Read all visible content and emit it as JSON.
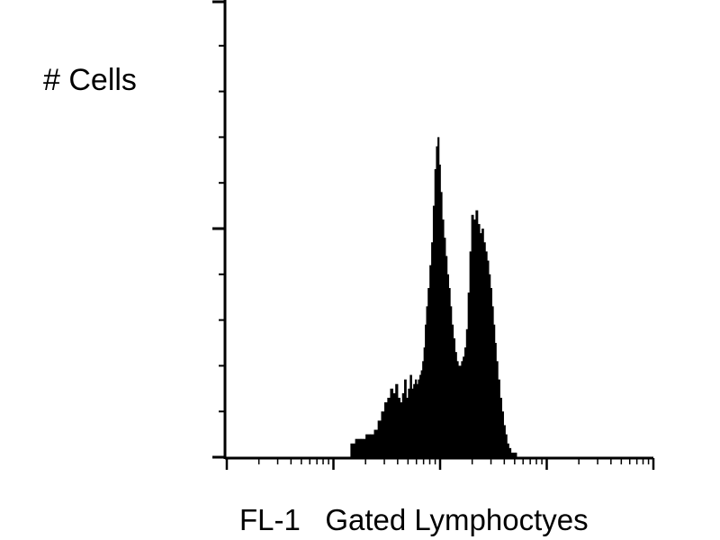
{
  "chart_data": {
    "type": "area",
    "title": "",
    "ylabel": "# Cells",
    "xlabel": "FL-1   Gated Lymphoctyes",
    "x_scale": "log",
    "xlim": [
      1,
      10000
    ],
    "ylim": [
      0,
      100
    ],
    "grid": false,
    "legend": "none",
    "fill_color": "#000000",
    "histogram": {
      "x": [
        15.0,
        17.0,
        19.0,
        21.0,
        23.0,
        25.0,
        27.0,
        29.0,
        31.0,
        33.0,
        35.0,
        37.0,
        39.0,
        41.0,
        43.0,
        45.0,
        47.0,
        49.0,
        51.0,
        53.0,
        55.0,
        57.0,
        59.0,
        61.0,
        63.0,
        65.0,
        67.0,
        69.0,
        71.0,
        73.0,
        75.0,
        78.0,
        81.0,
        84.0,
        87.0,
        90.0,
        93.0,
        96.0,
        99.0,
        102.0,
        106.0,
        110.0,
        114.0,
        118.0,
        122.0,
        126.0,
        130.0,
        135.0,
        140.0,
        145.0,
        150.0,
        155.0,
        160.0,
        166.0,
        172.0,
        178.0,
        185.0,
        192.0,
        200.0,
        210.0,
        220.0,
        230.0,
        240.0,
        250.0,
        260.0,
        270.0,
        280.0,
        290.0,
        300.0,
        310.0,
        320.0,
        330.0,
        340.0,
        355.0,
        370.0,
        385.0,
        400.0,
        415.0,
        430.0,
        450.0,
        470.0,
        490.0,
        510.0,
        530.0,
        550.0,
        575.0,
        600.0,
        630.0,
        660.0,
        690.0,
        720.0,
        750.0,
        780.0,
        800.0,
        870.0
      ],
      "counts": [
        3,
        4,
        4,
        5,
        5,
        6,
        8,
        10,
        12,
        13,
        15,
        14,
        16,
        13,
        12,
        14,
        17,
        13,
        15,
        18,
        15,
        16,
        17,
        16,
        17,
        18,
        19,
        21,
        24,
        29,
        33,
        37,
        42,
        47,
        55,
        63,
        68,
        70,
        64,
        58,
        52,
        48,
        44,
        40,
        37,
        33,
        29,
        26,
        23,
        21,
        20,
        20,
        21,
        22,
        24,
        28,
        36,
        45,
        53,
        52,
        54,
        51,
        49,
        50,
        47,
        45,
        43,
        40,
        37,
        33,
        29,
        25,
        21,
        17,
        13,
        10,
        7,
        5,
        3,
        2,
        1,
        1,
        1,
        0,
        0,
        0,
        0,
        0,
        0,
        0,
        0,
        0,
        0,
        0,
        0
      ]
    }
  }
}
